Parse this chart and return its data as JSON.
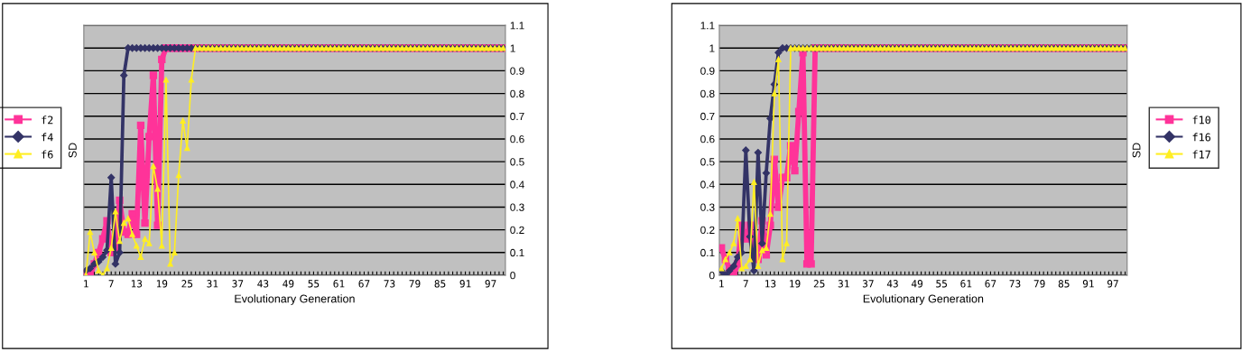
{
  "chart_data": [
    {
      "type": "line",
      "xlabel": "Evolutionary Generation",
      "ylabel": "SD",
      "ylim": [
        0,
        1.1
      ],
      "yticks": [
        0,
        0.1,
        0.2,
        0.3,
        0.4,
        0.5,
        0.6,
        0.7,
        0.8,
        0.9,
        1,
        1.1
      ],
      "grid": "y",
      "legend": "left",
      "categories": [
        "1",
        null,
        null,
        null,
        null,
        null,
        "7",
        null,
        null,
        null,
        null,
        null,
        "13",
        null,
        null,
        null,
        null,
        null,
        "19",
        null,
        null,
        null,
        null,
        null,
        "25",
        null,
        null,
        null,
        null,
        null,
        "31",
        null,
        null,
        null,
        null,
        null,
        "37",
        null,
        null,
        null,
        null,
        null,
        "43",
        null,
        null,
        null,
        null,
        null,
        "49",
        null,
        null,
        null,
        null,
        null,
        "55",
        null,
        null,
        null,
        null,
        null,
        "61",
        null,
        null,
        null,
        null,
        null,
        "67",
        null,
        null,
        null,
        null,
        null,
        "73",
        null,
        null,
        null,
        null,
        null,
        "79",
        null,
        null,
        null,
        null,
        null,
        "85",
        null,
        null,
        null,
        null,
        null,
        "91",
        null,
        null,
        null,
        null,
        null,
        "97",
        null,
        null,
        null
      ],
      "series": [
        {
          "name": "f2",
          "color": "#ff3399",
          "marker": "square",
          "values": [
            0.01,
            0.0,
            0.05,
            0.1,
            0.16,
            0.24,
            0.1,
            0.12,
            0.33,
            0.19,
            0.18,
            0.27,
            0.18,
            0.66,
            0.23,
            0.61,
            0.88,
            0.22,
            0.95,
            1,
            1,
            1,
            1,
            1,
            1,
            1,
            1,
            1,
            1,
            1,
            1,
            1,
            1,
            1,
            1,
            1,
            1,
            1,
            1,
            1,
            1,
            1,
            1,
            1,
            1,
            1,
            1,
            1,
            1,
            1,
            1,
            1,
            1,
            1,
            1,
            1,
            1,
            1,
            1,
            1,
            1,
            1,
            1,
            1,
            1,
            1,
            1,
            1,
            1,
            1,
            1,
            1,
            1,
            1,
            1,
            1,
            1,
            1,
            1,
            1,
            1,
            1,
            1,
            1,
            1,
            1,
            1,
            1,
            1,
            1,
            1,
            1,
            1,
            1,
            1,
            1,
            1,
            1,
            1,
            1
          ]
        },
        {
          "name": "f4",
          "color": "#333366",
          "marker": "diamond",
          "values": [
            0.02,
            0.03,
            0.05,
            0.06,
            0.08,
            0.11,
            0.43,
            0.05,
            0.1,
            0.88,
            1,
            1,
            1,
            1,
            1,
            1,
            1,
            1,
            1,
            1,
            1,
            1,
            1,
            1,
            1,
            1,
            1,
            1,
            1,
            1,
            1,
            1,
            1,
            1,
            1,
            1,
            1,
            1,
            1,
            1,
            1,
            1,
            1,
            1,
            1,
            1,
            1,
            1,
            1,
            1,
            1,
            1,
            1,
            1,
            1,
            1,
            1,
            1,
            1,
            1,
            1,
            1,
            1,
            1,
            1,
            1,
            1,
            1,
            1,
            1,
            1,
            1,
            1,
            1,
            1,
            1,
            1,
            1,
            1,
            1,
            1,
            1,
            1,
            1,
            1,
            1,
            1,
            1,
            1,
            1,
            1,
            1,
            1,
            1,
            1,
            1,
            1,
            1,
            1,
            1
          ]
        },
        {
          "name": "f6",
          "color": "#ffee22",
          "marker": "triangle",
          "values": [
            0,
            0.19,
            0.1,
            0.02,
            0,
            0.03,
            0.12,
            0.28,
            0.15,
            0.23,
            0.25,
            0.18,
            0.13,
            0.08,
            0.16,
            0.14,
            0.48,
            0.38,
            0.13,
            0.86,
            0.05,
            0.1,
            0.44,
            0.68,
            0.56,
            0.86,
            1,
            1,
            1,
            1,
            1,
            1,
            1,
            1,
            1,
            1,
            1,
            1,
            1,
            1,
            1,
            1,
            1,
            1,
            1,
            1,
            1,
            1,
            1,
            1,
            1,
            1,
            1,
            1,
            1,
            1,
            1,
            1,
            1,
            1,
            1,
            1,
            1,
            1,
            1,
            1,
            1,
            1,
            1,
            1,
            1,
            1,
            1,
            1,
            1,
            1,
            1,
            1,
            1,
            1,
            1,
            1,
            1,
            1,
            1,
            1,
            1,
            1,
            1,
            1,
            1,
            1,
            1,
            1,
            1,
            1,
            1,
            1,
            1,
            1
          ]
        }
      ]
    },
    {
      "type": "line",
      "xlabel": "Evolutionary Generation",
      "ylabel": "SD",
      "ylim": [
        0,
        1.1
      ],
      "yticks": [
        0,
        0.1,
        0.2,
        0.3,
        0.4,
        0.5,
        0.6,
        0.7,
        0.8,
        0.9,
        1,
        1.1
      ],
      "grid": "y",
      "legend": "right",
      "categories": [
        "1",
        null,
        null,
        null,
        null,
        null,
        "7",
        null,
        null,
        null,
        null,
        null,
        "13",
        null,
        null,
        null,
        null,
        null,
        "19",
        null,
        null,
        null,
        null,
        null,
        "25",
        null,
        null,
        null,
        null,
        null,
        "31",
        null,
        null,
        null,
        null,
        null,
        "37",
        null,
        null,
        null,
        null,
        null,
        "43",
        null,
        null,
        null,
        null,
        null,
        "49",
        null,
        null,
        null,
        null,
        null,
        "55",
        null,
        null,
        null,
        null,
        null,
        "61",
        null,
        null,
        null,
        null,
        null,
        "67",
        null,
        null,
        null,
        null,
        null,
        "73",
        null,
        null,
        null,
        null,
        null,
        "79",
        null,
        null,
        null,
        null,
        null,
        "85",
        null,
        null,
        null,
        null,
        null,
        "91",
        null,
        null,
        null,
        null,
        null,
        "97",
        null,
        null,
        null
      ],
      "series": [
        {
          "name": "f10",
          "color": "#ff3399",
          "marker": "square",
          "values": [
            0.12,
            0.07,
            0.03,
            0.0,
            0.05,
            0.22,
            0.16,
            0.22,
            0.1,
            0.07,
            0.24,
            0.09,
            0.22,
            0.51,
            0.3,
            0.43,
            0.43,
            0.57,
            0.46,
            0.72,
            0.98,
            0.05,
            0.05,
            1,
            1,
            1,
            1,
            1,
            1,
            1,
            1,
            1,
            1,
            1,
            1,
            1,
            1,
            1,
            1,
            1,
            1,
            1,
            1,
            1,
            1,
            1,
            1,
            1,
            1,
            1,
            1,
            1,
            1,
            1,
            1,
            1,
            1,
            1,
            1,
            1,
            1,
            1,
            1,
            1,
            1,
            1,
            1,
            1,
            1,
            1,
            1,
            1,
            1,
            1,
            1,
            1,
            1,
            1,
            1,
            1,
            1,
            1,
            1,
            1,
            1,
            1,
            1,
            1,
            1,
            1,
            1,
            1,
            1,
            1,
            1,
            1,
            1,
            1,
            1,
            1
          ]
        },
        {
          "name": "f16",
          "color": "#333366",
          "marker": "diamond",
          "values": [
            0.02,
            0,
            0.02,
            0.04,
            0.08,
            0.1,
            0.55,
            0.17,
            0.02,
            0.54,
            0.14,
            0.45,
            0.69,
            0.84,
            0.98,
            1,
            1,
            1,
            1,
            1,
            1,
            1,
            1,
            1,
            1,
            1,
            1,
            1,
            1,
            1,
            1,
            1,
            1,
            1,
            1,
            1,
            1,
            1,
            1,
            1,
            1,
            1,
            1,
            1,
            1,
            1,
            1,
            1,
            1,
            1,
            1,
            1,
            1,
            1,
            1,
            1,
            1,
            1,
            1,
            1,
            1,
            1,
            1,
            1,
            1,
            1,
            1,
            1,
            1,
            1,
            1,
            1,
            1,
            1,
            1,
            1,
            1,
            1,
            1,
            1,
            1,
            1,
            1,
            1,
            1,
            1,
            1,
            1,
            1,
            1,
            1,
            1,
            1,
            1,
            1,
            1,
            1,
            1,
            1,
            1
          ]
        },
        {
          "name": "f17",
          "color": "#ffee22",
          "marker": "triangle",
          "values": [
            0.03,
            0.07,
            0.1,
            0.14,
            0.25,
            0.03,
            0.04,
            0.07,
            0.41,
            0.04,
            0.11,
            0.12,
            0.27,
            0.8,
            0.95,
            0.07,
            0.14,
            1,
            1,
            1,
            1,
            1,
            1,
            1,
            1,
            1,
            1,
            1,
            1,
            1,
            1,
            1,
            1,
            1,
            1,
            1,
            1,
            1,
            1,
            1,
            1,
            1,
            1,
            1,
            1,
            1,
            1,
            1,
            1,
            1,
            1,
            1,
            1,
            1,
            1,
            1,
            1,
            1,
            1,
            1,
            1,
            1,
            1,
            1,
            1,
            1,
            1,
            1,
            1,
            1,
            1,
            1,
            1,
            1,
            1,
            1,
            1,
            1,
            1,
            1,
            1,
            1,
            1,
            1,
            1,
            1,
            1,
            1,
            1,
            1,
            1,
            1,
            1,
            1,
            1,
            1,
            1,
            1,
            1,
            1
          ]
        }
      ]
    }
  ]
}
